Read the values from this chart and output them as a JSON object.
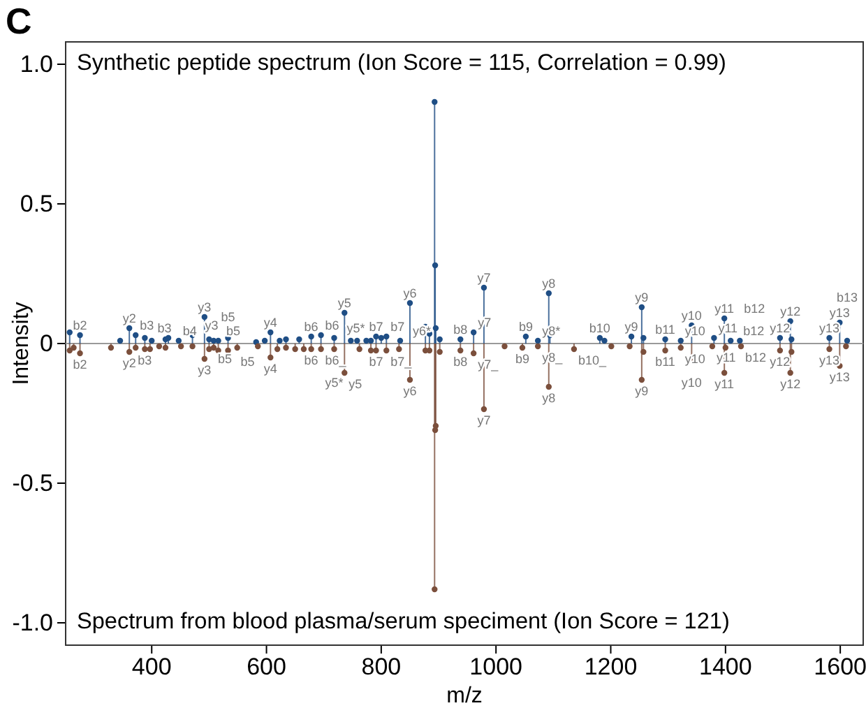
{
  "chart_data": {
    "type": "lollipop",
    "title": "C",
    "xlabel": "m/z",
    "ylabel": "Intensity",
    "annotations": [
      "Synthetic peptide spectrum (Ion Score = 115, Correlation = 0.99)",
      "Spectrum from blood plasma/serum speciment (Ion Score = 121)",
      {
        "text": "b2",
        "x": 275,
        "y": 0.03
      },
      {
        "text": "y2",
        "x": 361,
        "y": 0.055
      },
      {
        "text": "b3",
        "x": 372,
        "y": 0.03
      },
      {
        "text": "b3",
        "x": 388,
        "y": 0.02
      },
      {
        "text": "b4",
        "x": 447,
        "y": 0.01
      },
      {
        "text": "y3",
        "x": 471,
        "y": 0.03
      },
      {
        "text": "y3",
        "x": 492,
        "y": 0.095
      },
      {
        "text": "b5",
        "x": 508,
        "y": 0.01
      },
      {
        "text": "b5",
        "x": 533,
        "y": 0.02
      },
      {
        "text": "y4",
        "x": 607,
        "y": 0.04
      },
      {
        "text": "b6",
        "x": 678,
        "y": 0.025
      },
      {
        "text": "b6",
        "x": 695,
        "y": 0.03
      },
      {
        "text": "y5*",
        "x": 718,
        "y": 0.02
      },
      {
        "text": "y5",
        "x": 736,
        "y": 0.11
      },
      {
        "text": "b7",
        "x": 791,
        "y": 0.025
      },
      {
        "text": "b7",
        "x": 809,
        "y": 0.025
      },
      {
        "text": "y6*",
        "x": 833,
        "y": 0.01
      },
      {
        "text": "y6",
        "x": 850,
        "y": 0.145
      },
      {
        "text": "b8",
        "x": 938,
        "y": 0.015
      },
      {
        "text": "y7",
        "x": 961,
        "y": 0.04
      },
      {
        "text": "y7",
        "x": 979,
        "y": 0.2
      },
      {
        "text": "b9",
        "x": 1052,
        "y": 0.025
      },
      {
        "text": "y8*",
        "x": 1073,
        "y": 0.01
      },
      {
        "text": "y8",
        "x": 1092,
        "y": 0.18
      },
      {
        "text": "b10",
        "x": 1181,
        "y": 0.02
      },
      {
        "text": "y9",
        "x": 1236,
        "y": 0.025
      },
      {
        "text": "y9",
        "x": 1254,
        "y": 0.13
      },
      {
        "text": "b11",
        "x": 1295,
        "y": 0.015
      },
      {
        "text": "y10",
        "x": 1322,
        "y": 0.01
      },
      {
        "text": "y10",
        "x": 1341,
        "y": 0.065
      },
      {
        "text": "y11",
        "x": 1380,
        "y": 0.02
      },
      {
        "text": "y11",
        "x": 1398,
        "y": 0.09
      },
      {
        "text": "b12",
        "x": 1409,
        "y": 0.01
      },
      {
        "text": "b12",
        "x": 1425,
        "y": 0.01
      },
      {
        "text": "y12",
        "x": 1495,
        "y": 0.02
      },
      {
        "text": "y12",
        "x": 1513,
        "y": 0.08
      },
      {
        "text": "y13",
        "x": 1581,
        "y": 0.02
      },
      {
        "text": "y13",
        "x": 1599,
        "y": 0.075
      },
      {
        "text": "b13",
        "x": 1612,
        "y": 0.01
      },
      {
        "text": "b2",
        "x": 275,
        "y": -0.035
      },
      {
        "text": "y2",
        "x": 361,
        "y": -0.03
      },
      {
        "text": "b3",
        "x": 388,
        "y": -0.02
      },
      {
        "text": "y3",
        "x": 492,
        "y": -0.055
      },
      {
        "text": "b5",
        "x": 508,
        "y": -0.015
      },
      {
        "text": "b5",
        "x": 533,
        "y": -0.025
      },
      {
        "text": "y4",
        "x": 607,
        "y": -0.05
      },
      {
        "text": "b6",
        "x": 678,
        "y": -0.02
      },
      {
        "text": "b6_",
        "x": 695,
        "y": -0.02
      },
      {
        "text": "y5*",
        "x": 718,
        "y": -0.02
      },
      {
        "text": "y5",
        "x": 736,
        "y": -0.105
      },
      {
        "text": "b7",
        "x": 791,
        "y": -0.025
      },
      {
        "text": "b7_",
        "x": 809,
        "y": -0.025
      },
      {
        "text": "y6",
        "x": 850,
        "y": -0.13
      },
      {
        "text": "b8",
        "x": 938,
        "y": -0.025
      },
      {
        "text": "y7_",
        "x": 961,
        "y": -0.035
      },
      {
        "text": "y7",
        "x": 979,
        "y": -0.235
      },
      {
        "text": "b9",
        "x": 1046,
        "y": -0.015
      },
      {
        "text": "y8_",
        "x": 1073,
        "y": -0.01
      },
      {
        "text": "y8",
        "x": 1092,
        "y": -0.155
      },
      {
        "text": "b10_",
        "x": 1136,
        "y": -0.02
      },
      {
        "text": "y9",
        "x": 1254,
        "y": -0.13
      },
      {
        "text": "b11",
        "x": 1295,
        "y": -0.025
      },
      {
        "text": "y10",
        "x": 1322,
        "y": -0.015
      },
      {
        "text": "y10",
        "x": 1341,
        "y": -0.06
      },
      {
        "text": "y11",
        "x": 1377,
        "y": -0.01
      },
      {
        "text": "y11",
        "x": 1398,
        "y": -0.105
      },
      {
        "text": "b12",
        "x": 1427,
        "y": -0.01
      },
      {
        "text": "y12",
        "x": 1495,
        "y": -0.025
      },
      {
        "text": "y12",
        "x": 1513,
        "y": -0.105
      },
      {
        "text": "y13",
        "x": 1581,
        "y": -0.02
      },
      {
        "text": "y13",
        "x": 1599,
        "y": -0.08
      }
    ],
    "xlim": [
      250,
      1640
    ],
    "xticks": [
      400,
      600,
      800,
      1000,
      1200,
      1400,
      1600
    ],
    "ylim": [
      -1.08,
      1.08
    ],
    "yticks": [
      {
        "value": -1,
        "label": "-1.0"
      },
      {
        "value": -0.5,
        "label": "-0.5"
      },
      0,
      {
        "value": 0.5,
        "label": "0.5"
      },
      {
        "value": 1,
        "label": "1.0"
      }
    ],
    "marker": "circle",
    "series": [
      {
        "color": "#1f4e85",
        "x": [
          257,
          275,
          345,
          361,
          372,
          388,
          400,
          424,
          429,
          447,
          471,
          492,
          500,
          508,
          516,
          533,
          582,
          597,
          607,
          623,
          634,
          657,
          678,
          695,
          718,
          736,
          747,
          758,
          774,
          782,
          791,
          800,
          809,
          833,
          850,
          877,
          884,
          893,
          894,
          895,
          902,
          938,
          961,
          979,
          1052,
          1073,
          1092,
          1094,
          1181,
          1189,
          1236,
          1254,
          1257,
          1295,
          1322,
          1341,
          1380,
          1398,
          1409,
          1425,
          1495,
          1513,
          1515,
          1581,
          1599,
          1612
        ],
        "values": [
          0.04,
          0.03,
          0.01,
          0.055,
          0.03,
          0.02,
          0.01,
          0.015,
          0.02,
          0.01,
          0.03,
          0.095,
          0.015,
          0.01,
          0.01,
          0.02,
          0.005,
          0.01,
          0.04,
          0.01,
          0.015,
          0.015,
          0.025,
          0.03,
          0.02,
          0.11,
          0.01,
          0.01,
          0.01,
          0.01,
          0.025,
          0.02,
          0.025,
          0.01,
          0.145,
          0.06,
          0.035,
          0.865,
          0.28,
          0.055,
          0.015,
          0.015,
          0.04,
          0.2,
          0.025,
          0.01,
          0.18,
          0.03,
          0.02,
          0.01,
          0.025,
          0.13,
          0.02,
          0.015,
          0.01,
          0.065,
          0.02,
          0.09,
          0.01,
          0.01,
          0.02,
          0.08,
          0.015,
          0.02,
          0.075,
          0.01
        ]
      },
      {
        "color": "#7b4f3c",
        "x": [
          257,
          264,
          275,
          329,
          361,
          372,
          388,
          397,
          413,
          424,
          451,
          471,
          492,
          500,
          508,
          516,
          533,
          549,
          585,
          607,
          619,
          634,
          650,
          665,
          678,
          695,
          718,
          736,
          762,
          782,
          791,
          809,
          831,
          850,
          877,
          884,
          893,
          894,
          895,
          902,
          938,
          961,
          979,
          1015,
          1046,
          1073,
          1092,
          1136,
          1201,
          1233,
          1254,
          1257,
          1295,
          1322,
          1341,
          1377,
          1398,
          1400,
          1427,
          1495,
          1513,
          1515,
          1581,
          1599,
          1610
        ],
        "values": [
          -0.025,
          -0.015,
          -0.035,
          -0.015,
          -0.03,
          -0.015,
          -0.02,
          -0.02,
          -0.01,
          -0.015,
          -0.01,
          -0.01,
          -0.055,
          -0.02,
          -0.015,
          -0.025,
          -0.025,
          -0.015,
          -0.01,
          -0.05,
          -0.02,
          -0.015,
          -0.02,
          -0.02,
          -0.02,
          -0.02,
          -0.02,
          -0.105,
          -0.02,
          -0.025,
          -0.025,
          -0.025,
          -0.02,
          -0.13,
          -0.025,
          -0.025,
          -0.88,
          -0.31,
          -0.295,
          -0.03,
          -0.025,
          -0.035,
          -0.235,
          -0.01,
          -0.015,
          -0.01,
          -0.155,
          -0.02,
          -0.01,
          -0.01,
          -0.13,
          -0.03,
          -0.025,
          -0.015,
          -0.06,
          -0.01,
          -0.105,
          -0.015,
          -0.01,
          -0.025,
          -0.105,
          -0.03,
          -0.02,
          -0.08,
          -0.01
        ]
      }
    ]
  }
}
